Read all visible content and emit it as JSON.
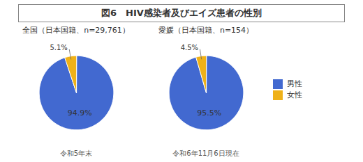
{
  "title": "図6　HIV感染者及びエイズ患者の性別",
  "chart_data": [
    {
      "type": "pie",
      "title": "全国（日本国籍、n=29,761）",
      "categories": [
        "男性",
        "女性"
      ],
      "values": [
        94.9,
        5.1
      ],
      "value_labels": [
        "94.9%",
        "5.1%"
      ],
      "data_labels": true,
      "annotations": [
        "令和5年末"
      ],
      "legend": "right"
    },
    {
      "type": "pie",
      "title": "愛媛（日本国籍、n=154）",
      "categories": [
        "男性",
        "女性"
      ],
      "values": [
        95.5,
        4.5
      ],
      "value_labels": [
        "95.5%",
        "4.5%"
      ],
      "data_labels": true,
      "annotations": [
        "令和6年11月6日現在"
      ],
      "legend": "right"
    }
  ]
}
